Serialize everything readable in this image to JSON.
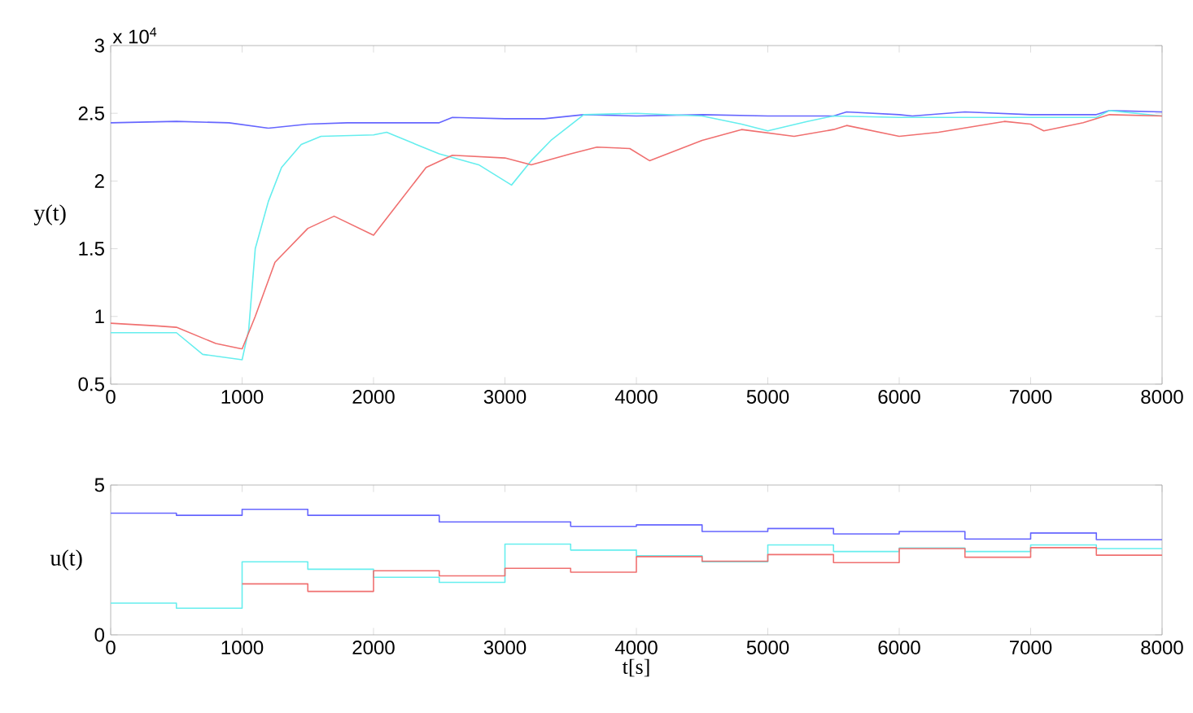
{
  "chart_data": [
    {
      "type": "line",
      "ylabel": "y(t)",
      "annotations": [
        "x 10$^{4}$"
      ],
      "xlim": [
        0,
        8000
      ],
      "ylim": [
        0.5,
        3
      ],
      "xticks": [
        0,
        1000,
        2000,
        3000,
        4000,
        5000,
        6000,
        7000,
        8000
      ],
      "yticks": [
        0.5,
        1,
        1.5,
        2,
        2.5,
        3
      ],
      "series": [
        {
          "color": "#6666ff",
          "x": [
            0,
            500,
            900,
            1200,
            1500,
            1800,
            2100,
            2500,
            2600,
            3000,
            3300,
            3600,
            4000,
            4500,
            5000,
            5500,
            5600,
            6000,
            6100,
            6500,
            7000,
            7500,
            7600,
            8000
          ],
          "values": [
            2.43,
            2.44,
            2.43,
            2.39,
            2.42,
            2.43,
            2.43,
            2.43,
            2.47,
            2.46,
            2.46,
            2.49,
            2.48,
            2.49,
            2.48,
            2.48,
            2.51,
            2.49,
            2.48,
            2.51,
            2.49,
            2.49,
            2.52,
            2.51
          ]
        },
        {
          "color": "#66eeee",
          "x": [
            0,
            500,
            700,
            1000,
            1050,
            1100,
            1200,
            1300,
            1450,
            1600,
            2000,
            2100,
            2300,
            2500,
            2800,
            3050,
            3200,
            3350,
            3600,
            4000,
            4500,
            4800,
            5000,
            5300,
            5500,
            6000,
            7000,
            7500,
            7600,
            8000
          ],
          "values": [
            0.88,
            0.88,
            0.72,
            0.68,
            0.9,
            1.5,
            1.85,
            2.1,
            2.27,
            2.33,
            2.34,
            2.36,
            2.28,
            2.2,
            2.12,
            1.97,
            2.15,
            2.3,
            2.49,
            2.5,
            2.48,
            2.42,
            2.37,
            2.44,
            2.48,
            2.47,
            2.47,
            2.47,
            2.52,
            2.48
          ]
        },
        {
          "color": "#f07070",
          "x": [
            0,
            350,
            500,
            800,
            1000,
            1100,
            1250,
            1500,
            1700,
            2000,
            2200,
            2400,
            2600,
            3000,
            3200,
            3500,
            3700,
            3950,
            4100,
            4500,
            4800,
            5200,
            5500,
            5600,
            6000,
            6300,
            6800,
            7000,
            7100,
            7400,
            7600,
            8000
          ],
          "values": [
            0.95,
            0.93,
            0.92,
            0.8,
            0.76,
            1.0,
            1.4,
            1.65,
            1.74,
            1.6,
            1.85,
            2.1,
            2.19,
            2.17,
            2.12,
            2.2,
            2.25,
            2.24,
            2.15,
            2.3,
            2.38,
            2.33,
            2.38,
            2.41,
            2.33,
            2.36,
            2.44,
            2.42,
            2.37,
            2.43,
            2.49,
            2.48
          ]
        }
      ]
    },
    {
      "type": "step",
      "xlabel": "t[s]",
      "ylabel": "u(t)",
      "xlim": [
        0,
        8000
      ],
      "ylim": [
        0,
        5
      ],
      "xticks": [
        0,
        1000,
        2000,
        3000,
        4000,
        5000,
        6000,
        7000,
        8000
      ],
      "yticks": [
        0,
        5
      ],
      "x": [
        0,
        500,
        1000,
        1500,
        2000,
        2500,
        3000,
        3500,
        4000,
        4500,
        5000,
        5500,
        6000,
        6500,
        7000,
        7500,
        8000
      ],
      "series": [
        {
          "color": "#6666ff",
          "values": [
            4.06,
            3.99,
            4.19,
            3.99,
            3.99,
            3.77,
            3.77,
            3.62,
            3.67,
            3.45,
            3.55,
            3.37,
            3.45,
            3.2,
            3.4,
            3.18,
            3.18
          ]
        },
        {
          "color": "#66eeee",
          "values": [
            1.06,
            0.89,
            2.44,
            2.19,
            1.92,
            1.75,
            3.03,
            2.83,
            2.64,
            2.44,
            3.0,
            2.78,
            2.9,
            2.78,
            3.0,
            2.88,
            2.88
          ]
        },
        {
          "color": "#f07070",
          "values": [
            null,
            null,
            1.7,
            1.45,
            2.14,
            1.97,
            2.22,
            2.09,
            2.61,
            2.46,
            2.68,
            2.41,
            2.88,
            2.59,
            2.91,
            2.66,
            2.66
          ]
        }
      ]
    }
  ]
}
